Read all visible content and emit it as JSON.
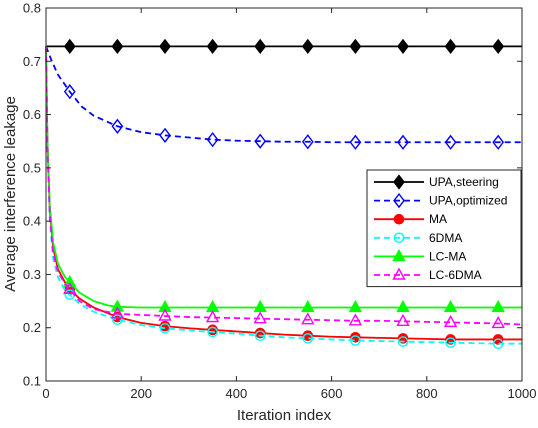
{
  "chart_data": {
    "type": "line",
    "title": "",
    "xlabel": "Iteration index",
    "ylabel": "Average interference leakage",
    "xlim": [
      0,
      1000
    ],
    "ylim": [
      0.1,
      0.8
    ],
    "xticks": [
      0,
      200,
      400,
      600,
      800,
      1000
    ],
    "yticks": [
      0.1,
      0.2,
      0.3,
      0.4,
      0.5,
      0.6,
      0.7,
      0.8
    ],
    "xtick_labels": [
      "0",
      "200",
      "400",
      "600",
      "800",
      "1000"
    ],
    "ytick_labels": [
      "0.1",
      "0.2",
      "0.3",
      "0.4",
      "0.5",
      "0.6",
      "0.7",
      "0.8"
    ],
    "grid": false,
    "legend_position": "center-right",
    "marker_x": [
      50,
      150,
      250,
      350,
      450,
      550,
      650,
      750,
      850,
      950
    ],
    "series": [
      {
        "name": "UPA,steering",
        "color": "#000000",
        "dash": "solid",
        "marker": "diamond",
        "marker_fill": "#000000",
        "x": [
          0,
          1000
        ],
        "y": [
          0.728,
          0.728
        ]
      },
      {
        "name": "UPA,optimized",
        "color": "#0000ff",
        "dash": "dashed",
        "marker": "diamond",
        "marker_fill": "none",
        "x": [
          0,
          10,
          25,
          50,
          75,
          100,
          150,
          200,
          250,
          300,
          350,
          400,
          450,
          500,
          550,
          600,
          650,
          700,
          750,
          800,
          850,
          900,
          950,
          1000
        ],
        "y": [
          0.728,
          0.705,
          0.675,
          0.643,
          0.615,
          0.598,
          0.578,
          0.567,
          0.561,
          0.557,
          0.553,
          0.551,
          0.55,
          0.549,
          0.549,
          0.548,
          0.548,
          0.548,
          0.548,
          0.548,
          0.548,
          0.548,
          0.548,
          0.548
        ]
      },
      {
        "name": "MA",
        "color": "#ff0000",
        "dash": "solid",
        "marker": "circle",
        "marker_fill": "#ff0000",
        "x": [
          0,
          3,
          8,
          15,
          25,
          40,
          50,
          70,
          100,
          150,
          200,
          250,
          300,
          350,
          400,
          450,
          500,
          550,
          600,
          650,
          700,
          750,
          800,
          850,
          900,
          950,
          1000
        ],
        "y": [
          0.728,
          0.55,
          0.42,
          0.35,
          0.31,
          0.285,
          0.272,
          0.255,
          0.238,
          0.22,
          0.209,
          0.203,
          0.199,
          0.196,
          0.193,
          0.19,
          0.187,
          0.185,
          0.183,
          0.182,
          0.181,
          0.18,
          0.179,
          0.178,
          0.178,
          0.178,
          0.178
        ]
      },
      {
        "name": "6DMA",
        "color": "#00ffff",
        "dash": "dashed",
        "marker": "circle",
        "marker_fill": "none",
        "x": [
          0,
          3,
          8,
          15,
          25,
          40,
          50,
          70,
          100,
          150,
          200,
          250,
          300,
          350,
          400,
          450,
          500,
          550,
          600,
          650,
          700,
          750,
          800,
          850,
          900,
          950,
          1000
        ],
        "y": [
          0.728,
          0.53,
          0.4,
          0.33,
          0.295,
          0.27,
          0.262,
          0.245,
          0.23,
          0.215,
          0.205,
          0.199,
          0.195,
          0.192,
          0.189,
          0.185,
          0.182,
          0.18,
          0.178,
          0.176,
          0.175,
          0.174,
          0.173,
          0.172,
          0.171,
          0.17,
          0.17
        ]
      },
      {
        "name": "LC-MA",
        "color": "#00ff00",
        "dash": "solid",
        "marker": "triangle",
        "marker_fill": "#00ff00",
        "x": [
          0,
          3,
          8,
          15,
          25,
          40,
          50,
          70,
          100,
          130,
          150,
          200,
          250,
          300,
          350,
          400,
          450,
          500,
          550,
          600,
          650,
          700,
          750,
          800,
          850,
          900,
          950,
          1000
        ],
        "y": [
          0.728,
          0.55,
          0.43,
          0.36,
          0.32,
          0.295,
          0.285,
          0.266,
          0.25,
          0.242,
          0.239,
          0.238,
          0.238,
          0.238,
          0.238,
          0.238,
          0.238,
          0.238,
          0.238,
          0.238,
          0.238,
          0.238,
          0.238,
          0.238,
          0.238,
          0.238,
          0.238,
          0.238
        ]
      },
      {
        "name": "LC-6DMA",
        "color": "#ff00ff",
        "dash": "dashed",
        "marker": "triangle",
        "marker_fill": "none",
        "x": [
          0,
          3,
          8,
          15,
          25,
          40,
          50,
          70,
          100,
          150,
          200,
          250,
          300,
          350,
          400,
          450,
          500,
          550,
          600,
          650,
          700,
          750,
          800,
          850,
          900,
          950,
          1000
        ],
        "y": [
          0.728,
          0.54,
          0.41,
          0.34,
          0.305,
          0.282,
          0.272,
          0.25,
          0.235,
          0.226,
          0.224,
          0.222,
          0.22,
          0.219,
          0.218,
          0.217,
          0.216,
          0.215,
          0.214,
          0.213,
          0.213,
          0.212,
          0.211,
          0.21,
          0.209,
          0.208,
          0.206
        ]
      }
    ]
  }
}
